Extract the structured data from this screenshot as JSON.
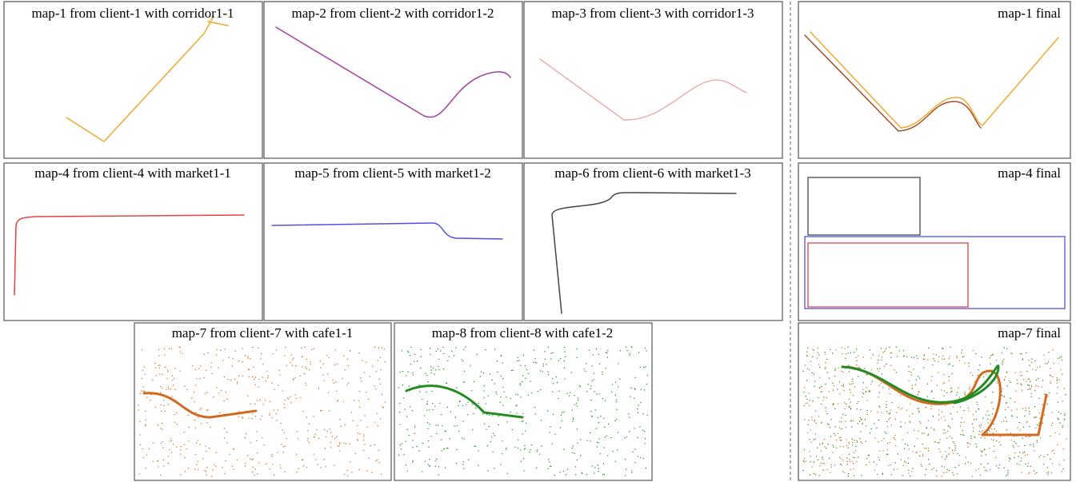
{
  "panels": [
    {
      "title": "map-1 from client-1 with corridor1-1"
    },
    {
      "title": "map-2 from client-2 with corridor1-2"
    },
    {
      "title": "map-3 from client-3 with corridor1-3"
    },
    {
      "title": "map-4 from client-4 with market1-1"
    },
    {
      "title": "map-5 from client-5 with market1-2"
    },
    {
      "title": "map-6 from client-6 with market1-3"
    },
    {
      "title": "map-7 from client-7 with cafe1-1"
    },
    {
      "title": "map-8 from client-8 with cafe1-2"
    }
  ],
  "finals": [
    {
      "title": "map-1 final"
    },
    {
      "title": "map-4 final"
    },
    {
      "title": "map-7 final"
    }
  ]
}
